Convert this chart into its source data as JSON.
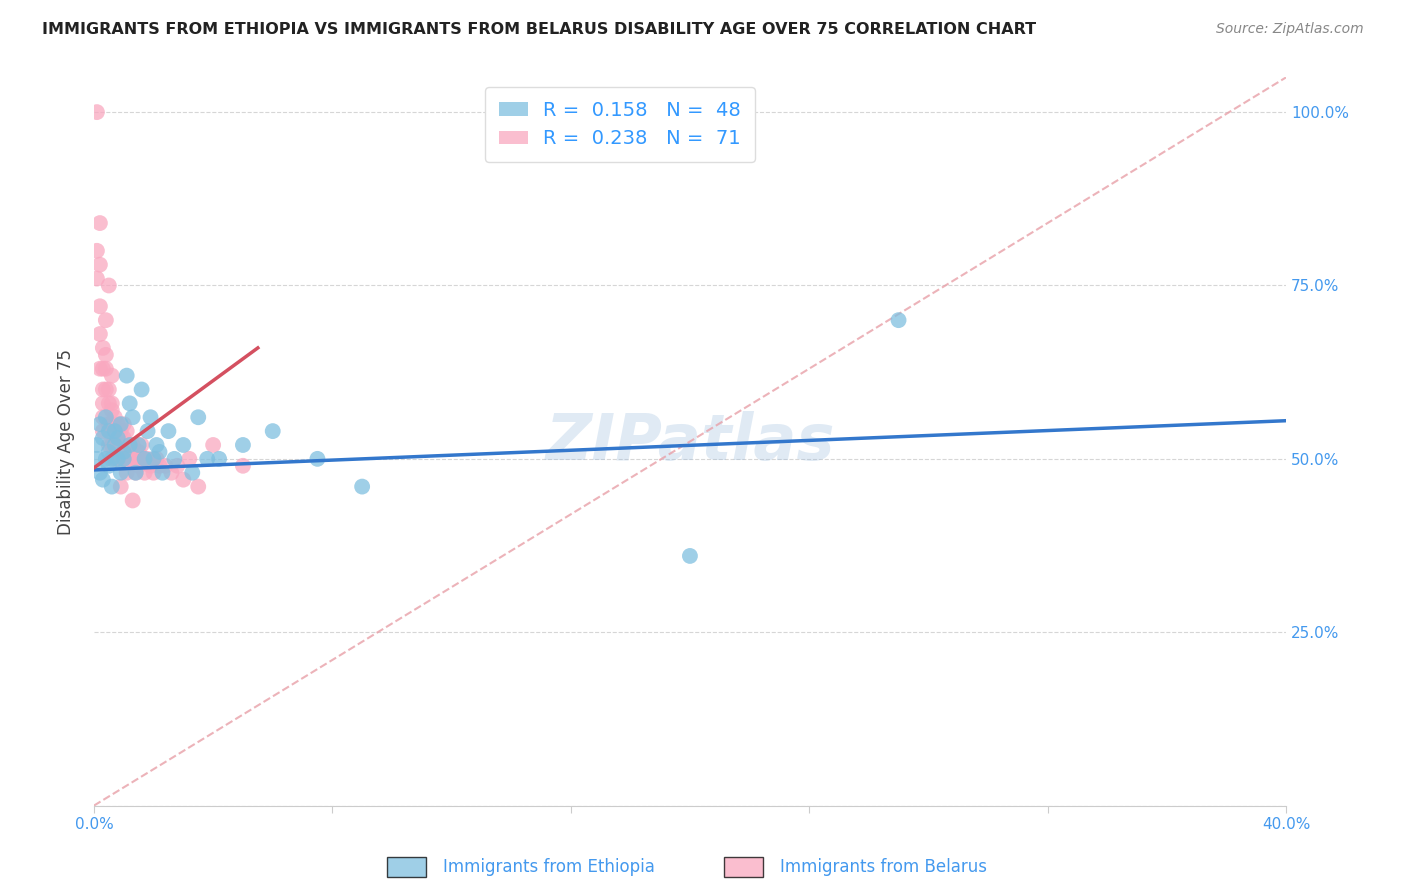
{
  "title": "IMMIGRANTS FROM ETHIOPIA VS IMMIGRANTS FROM BELARUS DISABILITY AGE OVER 75 CORRELATION CHART",
  "source": "Source: ZipAtlas.com",
  "ylabel": "Disability Age Over 75",
  "xlim": [
    0.0,
    0.4
  ],
  "ylim": [
    0.0,
    1.05
  ],
  "xticks": [
    0.0,
    0.08,
    0.16,
    0.24,
    0.32,
    0.4
  ],
  "xtick_labels": [
    "0.0%",
    "",
    "",
    "",
    "",
    "40.0%"
  ],
  "yticks": [
    0.0,
    0.25,
    0.5,
    0.75,
    1.0
  ],
  "ytick_labels": [
    "",
    "25.0%",
    "50.0%",
    "75.0%",
    "100.0%"
  ],
  "R_ethiopia": 0.158,
  "N_ethiopia": 48,
  "R_belarus": 0.238,
  "N_belarus": 71,
  "color_ethiopia": "#7fbfdf",
  "color_belarus": "#f9a8c0",
  "line_color_ethiopia": "#3377cc",
  "line_color_belarus": "#d45060",
  "diag_color": "#e8a0a8",
  "background_color": "#ffffff",
  "grid_color": "#cccccc",
  "watermark": "ZIPatlas",
  "ethiopia_x": [
    0.001,
    0.001,
    0.002,
    0.002,
    0.003,
    0.003,
    0.004,
    0.004,
    0.005,
    0.005,
    0.005,
    0.006,
    0.006,
    0.007,
    0.007,
    0.008,
    0.008,
    0.009,
    0.009,
    0.01,
    0.01,
    0.011,
    0.012,
    0.012,
    0.013,
    0.014,
    0.015,
    0.016,
    0.017,
    0.018,
    0.019,
    0.02,
    0.021,
    0.022,
    0.023,
    0.025,
    0.027,
    0.03,
    0.033,
    0.035,
    0.038,
    0.042,
    0.05,
    0.06,
    0.075,
    0.09,
    0.27,
    0.2
  ],
  "ethiopia_y": [
    0.5,
    0.52,
    0.48,
    0.55,
    0.47,
    0.53,
    0.5,
    0.56,
    0.49,
    0.51,
    0.54,
    0.5,
    0.46,
    0.54,
    0.52,
    0.5,
    0.53,
    0.48,
    0.55,
    0.51,
    0.5,
    0.62,
    0.58,
    0.52,
    0.56,
    0.48,
    0.52,
    0.6,
    0.5,
    0.54,
    0.56,
    0.5,
    0.52,
    0.51,
    0.48,
    0.54,
    0.5,
    0.52,
    0.48,
    0.56,
    0.5,
    0.5,
    0.52,
    0.54,
    0.5,
    0.46,
    0.7,
    0.36
  ],
  "belarus_x": [
    0.001,
    0.001,
    0.001,
    0.002,
    0.002,
    0.002,
    0.002,
    0.002,
    0.003,
    0.003,
    0.003,
    0.003,
    0.003,
    0.004,
    0.004,
    0.004,
    0.004,
    0.005,
    0.005,
    0.005,
    0.005,
    0.005,
    0.006,
    0.006,
    0.006,
    0.006,
    0.007,
    0.007,
    0.007,
    0.008,
    0.008,
    0.008,
    0.009,
    0.009,
    0.009,
    0.01,
    0.01,
    0.01,
    0.011,
    0.011,
    0.012,
    0.012,
    0.013,
    0.013,
    0.014,
    0.014,
    0.015,
    0.015,
    0.016,
    0.016,
    0.017,
    0.017,
    0.018,
    0.019,
    0.02,
    0.021,
    0.022,
    0.024,
    0.026,
    0.028,
    0.03,
    0.032,
    0.035,
    0.04,
    0.05,
    0.003,
    0.006,
    0.007,
    0.009,
    0.011,
    0.013
  ],
  "belarus_y": [
    1.0,
    0.8,
    0.76,
    0.84,
    0.78,
    0.72,
    0.68,
    0.63,
    0.63,
    0.6,
    0.58,
    0.56,
    0.54,
    0.7,
    0.65,
    0.63,
    0.6,
    0.75,
    0.6,
    0.58,
    0.55,
    0.52,
    0.62,
    0.58,
    0.55,
    0.52,
    0.56,
    0.54,
    0.52,
    0.55,
    0.53,
    0.5,
    0.54,
    0.52,
    0.5,
    0.55,
    0.53,
    0.5,
    0.54,
    0.51,
    0.52,
    0.5,
    0.52,
    0.5,
    0.5,
    0.48,
    0.51,
    0.49,
    0.52,
    0.5,
    0.5,
    0.48,
    0.5,
    0.49,
    0.48,
    0.5,
    0.49,
    0.49,
    0.48,
    0.49,
    0.47,
    0.5,
    0.46,
    0.52,
    0.49,
    0.66,
    0.57,
    0.5,
    0.46,
    0.48,
    0.44
  ],
  "eth_line_x": [
    0.0,
    0.4
  ],
  "eth_line_y": [
    0.484,
    0.555
  ],
  "bel_line_x": [
    0.0,
    0.055
  ],
  "bel_line_y": [
    0.487,
    0.66
  ],
  "diag_line_x": [
    0.0,
    0.4
  ],
  "diag_line_y": [
    0.0,
    1.05
  ]
}
